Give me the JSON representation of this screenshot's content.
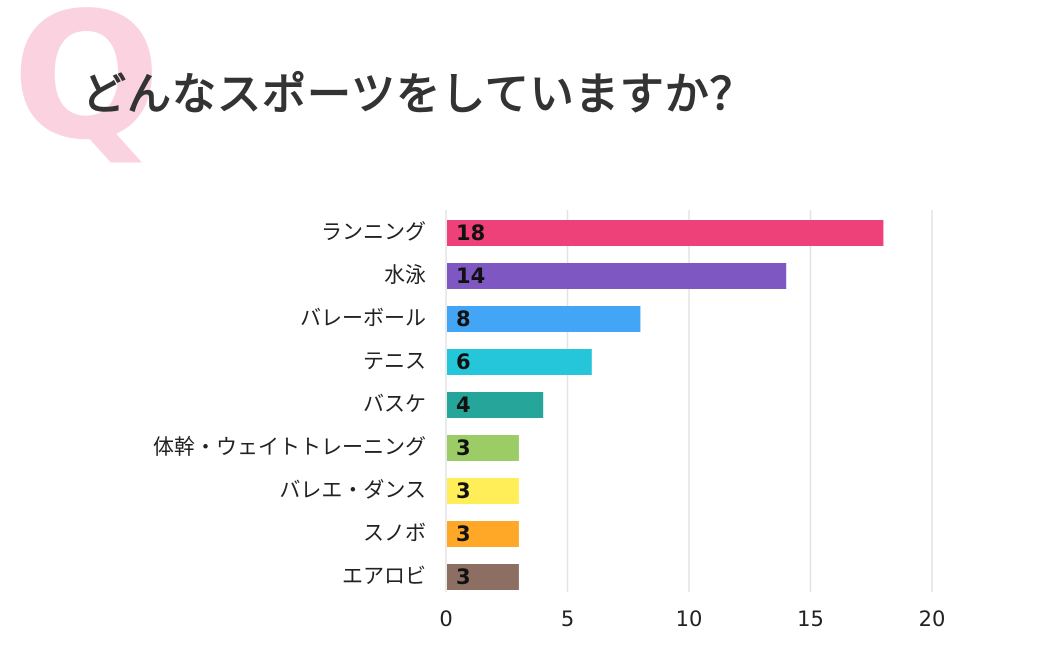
{
  "header": {
    "q_mark": "Q",
    "title": "どんなスポーツをしていますか？"
  },
  "chart_data": {
    "type": "bar",
    "orientation": "horizontal",
    "title": "どんなスポーツをしていますか？",
    "categories": [
      "ランニング",
      "水泳",
      "バレーボール",
      "テニス",
      "バスケ",
      "体幹・ウェイトトレーニング",
      "バレエ・ダンス",
      "スノボ",
      "エアロビ"
    ],
    "values": [
      18,
      14,
      8,
      6,
      4,
      3,
      3,
      3,
      3
    ],
    "colors": [
      "#ee4079",
      "#7e57c2",
      "#42a5f5",
      "#26c6da",
      "#26a69a",
      "#9ccc65",
      "#ffee58",
      "#ffa726",
      "#8d6e63"
    ],
    "xlim": [
      0,
      20
    ],
    "xticks": [
      0,
      5,
      10,
      15,
      20
    ],
    "grid": true,
    "data_labels": true,
    "legend": "none"
  }
}
